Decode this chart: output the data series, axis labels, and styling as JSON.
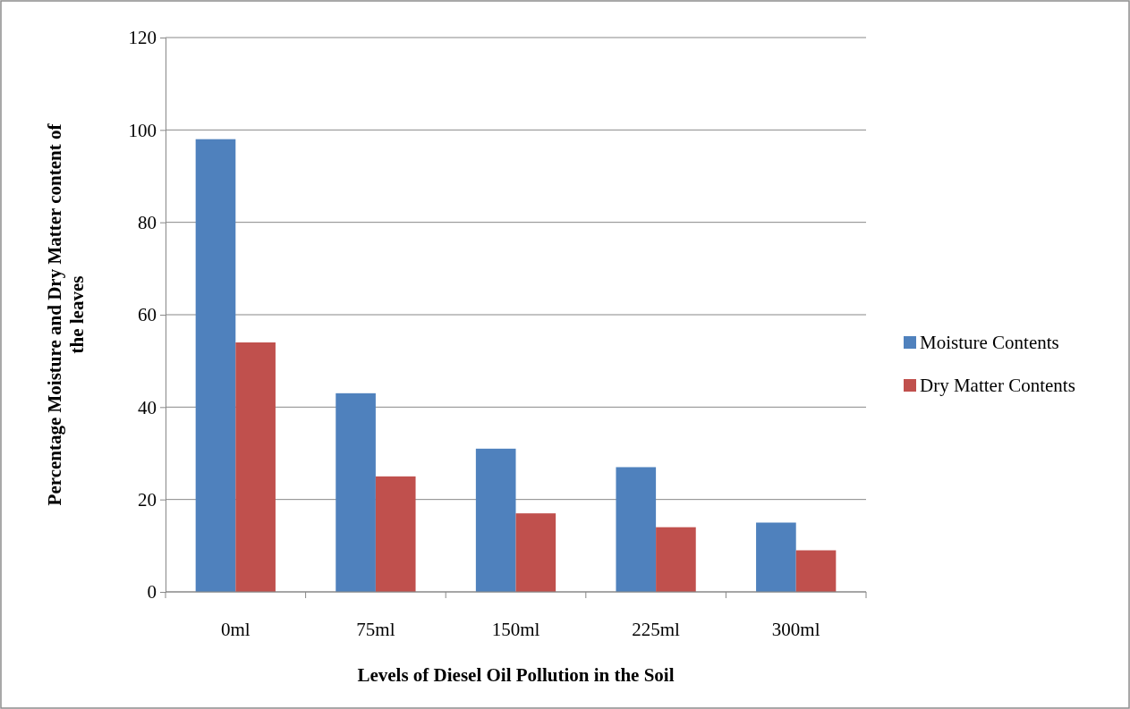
{
  "chart_data": {
    "type": "bar",
    "xlabel": "Levels of Diesel Oil Pollution in the Soil",
    "ylabel": "Percentage Moisture and Dry Matter content of the leaves",
    "categories": [
      "0ml",
      "75ml",
      "150ml",
      "225ml",
      "300ml"
    ],
    "series": [
      {
        "name": "Moisture Contents",
        "color": "#4f81bd",
        "values": [
          98,
          43,
          31,
          27,
          15
        ]
      },
      {
        "name": "Dry Matter Contents",
        "color": "#c0504d",
        "values": [
          54,
          25,
          17,
          14,
          9
        ]
      }
    ],
    "ylim": [
      0,
      120
    ],
    "yticks": [
      0,
      20,
      40,
      60,
      80,
      100,
      120
    ],
    "grid": "y",
    "legend": "right"
  }
}
